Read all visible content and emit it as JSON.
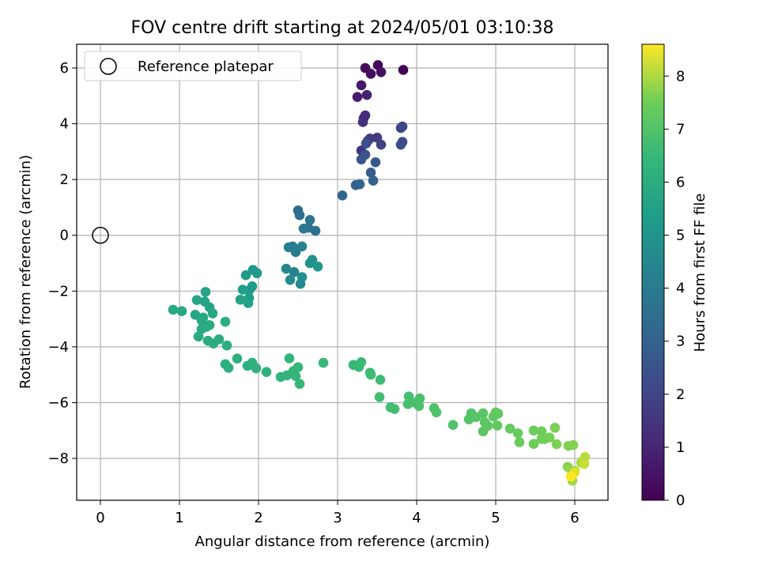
{
  "chart_data": {
    "type": "scatter",
    "title": "FOV centre drift starting at 2024/05/01 03:10:38",
    "xlabel": "Angular distance from reference (arcmin)",
    "ylabel": "Rotation from reference (arcmin)",
    "xlim": [
      -0.3,
      6.42
    ],
    "ylim": [
      -9.5,
      6.85
    ],
    "xticks": [
      0,
      1,
      2,
      3,
      4,
      5,
      6
    ],
    "yticks": [
      -8,
      -6,
      -4,
      -2,
      0,
      2,
      4,
      6
    ],
    "grid": true,
    "legend": {
      "placement": "top-left",
      "entries": [
        "Reference platepar"
      ]
    },
    "reference_point": {
      "x": 0,
      "y": 0
    },
    "colorbar": {
      "label": "Hours from first FF file",
      "colormap": "viridis",
      "range": [
        0,
        8.6
      ],
      "ticks": [
        0,
        1,
        2,
        3,
        4,
        5,
        6,
        7,
        8
      ]
    },
    "point_fields": [
      "x",
      "y",
      "hours"
    ],
    "points": [
      [
        3.83,
        5.93,
        0.05
      ],
      [
        3.51,
        6.1,
        0.15
      ],
      [
        3.35,
        6.0,
        0.25
      ],
      [
        3.42,
        5.79,
        0.35
      ],
      [
        3.55,
        5.85,
        0.45
      ],
      [
        3.3,
        5.38,
        0.6
      ],
      [
        3.25,
        4.96,
        0.75
      ],
      [
        3.37,
        5.03,
        0.9
      ],
      [
        3.33,
        4.2,
        1.05
      ],
      [
        3.35,
        4.3,
        1.2
      ],
      [
        3.32,
        4.06,
        1.35
      ],
      [
        3.3,
        3.04,
        1.5
      ],
      [
        3.41,
        3.47,
        1.6
      ],
      [
        3.5,
        3.5,
        1.7
      ],
      [
        3.38,
        3.38,
        1.8
      ],
      [
        3.55,
        3.25,
        1.9
      ],
      [
        3.8,
        3.85,
        2.0
      ],
      [
        3.82,
        3.9,
        2.1
      ],
      [
        3.82,
        3.35,
        2.2
      ],
      [
        3.8,
        3.25,
        2.3
      ],
      [
        3.36,
        3.29,
        2.4
      ],
      [
        3.35,
        2.89,
        2.5
      ],
      [
        3.3,
        2.72,
        2.6
      ],
      [
        3.48,
        2.62,
        2.7
      ],
      [
        3.42,
        2.25,
        2.8
      ],
      [
        3.45,
        1.96,
        2.9
      ],
      [
        3.23,
        1.8,
        3.0
      ],
      [
        3.28,
        1.83,
        3.1
      ],
      [
        3.06,
        1.43,
        3.2
      ],
      [
        2.5,
        0.89,
        3.35
      ],
      [
        2.52,
        0.72,
        3.45
      ],
      [
        2.63,
        0.27,
        3.55
      ],
      [
        2.72,
        0.16,
        3.65
      ],
      [
        2.65,
        0.55,
        3.75
      ],
      [
        2.57,
        0.24,
        3.85
      ],
      [
        2.47,
        -0.6,
        3.95
      ],
      [
        2.43,
        -0.4,
        4.05
      ],
      [
        2.38,
        -0.43,
        4.15
      ],
      [
        2.55,
        -0.4,
        4.25
      ],
      [
        2.45,
        -1.32,
        4.35
      ],
      [
        2.35,
        -1.2,
        4.45
      ],
      [
        2.53,
        -1.74,
        4.55
      ],
      [
        2.4,
        -1.6,
        4.65
      ],
      [
        2.55,
        -1.5,
        4.75
      ],
      [
        2.68,
        -0.88,
        4.85
      ],
      [
        2.65,
        -1.0,
        4.95
      ],
      [
        2.75,
        -1.12,
        5.05
      ],
      [
        1.93,
        -1.24,
        5.15
      ],
      [
        1.98,
        -1.36,
        5.2
      ],
      [
        1.84,
        -1.43,
        5.25
      ],
      [
        1.88,
        -1.98,
        5.3
      ],
      [
        1.92,
        -1.83,
        5.35
      ],
      [
        1.8,
        -1.95,
        5.4
      ],
      [
        1.88,
        -2.25,
        5.45
      ],
      [
        1.87,
        -2.43,
        5.5
      ],
      [
        1.77,
        -2.31,
        5.55
      ],
      [
        1.33,
        -2.03,
        5.6
      ],
      [
        1.32,
        -2.38,
        5.63
      ],
      [
        1.22,
        -2.32,
        5.66
      ],
      [
        1.38,
        -2.58,
        5.69
      ],
      [
        1.2,
        -2.85,
        5.72
      ],
      [
        1.3,
        -2.95,
        5.75
      ],
      [
        1.42,
        -2.8,
        5.78
      ],
      [
        0.92,
        -2.67,
        5.8
      ],
      [
        1.03,
        -2.72,
        5.82
      ],
      [
        1.28,
        -3.05,
        5.84
      ],
      [
        1.34,
        -3.28,
        5.86
      ],
      [
        1.28,
        -3.36,
        5.88
      ],
      [
        1.38,
        -3.22,
        5.9
      ],
      [
        1.24,
        -3.63,
        5.92
      ],
      [
        1.36,
        -3.78,
        5.94
      ],
      [
        1.43,
        -3.88,
        5.96
      ],
      [
        1.5,
        -3.73,
        5.98
      ],
      [
        1.58,
        -3.1,
        6.0
      ],
      [
        1.6,
        -3.95,
        6.02
      ],
      [
        1.58,
        -4.62,
        6.05
      ],
      [
        1.62,
        -4.75,
        6.08
      ],
      [
        1.73,
        -4.42,
        6.11
      ],
      [
        1.86,
        -4.68,
        6.14
      ],
      [
        1.92,
        -4.57,
        6.17
      ],
      [
        1.97,
        -4.77,
        6.2
      ],
      [
        2.1,
        -4.9,
        6.23
      ],
      [
        2.28,
        -5.08,
        6.26
      ],
      [
        2.36,
        -5.02,
        6.29
      ],
      [
        2.39,
        -4.41,
        6.32
      ],
      [
        2.44,
        -4.87,
        6.35
      ],
      [
        2.47,
        -5.05,
        6.38
      ],
      [
        2.5,
        -4.73,
        6.41
      ],
      [
        2.52,
        -5.33,
        6.44
      ],
      [
        2.82,
        -4.57,
        6.47
      ],
      [
        3.2,
        -4.65,
        6.5
      ],
      [
        3.27,
        -4.72,
        6.53
      ],
      [
        3.3,
        -4.55,
        6.56
      ],
      [
        3.41,
        -4.93,
        6.59
      ],
      [
        3.42,
        -5.0,
        6.62
      ],
      [
        3.54,
        -5.18,
        6.65
      ],
      [
        3.53,
        -5.8,
        6.68
      ],
      [
        3.67,
        -6.17,
        6.71
      ],
      [
        3.72,
        -6.23,
        6.74
      ],
      [
        3.9,
        -5.78,
        6.77
      ],
      [
        3.89,
        -6.05,
        6.8
      ],
      [
        3.98,
        -6.0,
        6.83
      ],
      [
        4.04,
        -5.85,
        6.86
      ],
      [
        4.03,
        -6.12,
        6.89
      ],
      [
        4.22,
        -6.2,
        6.92
      ],
      [
        4.25,
        -6.35,
        6.95
      ],
      [
        4.46,
        -6.8,
        6.98
      ],
      [
        4.66,
        -6.6,
        7.01
      ],
      [
        4.69,
        -6.38,
        7.04
      ],
      [
        4.75,
        -6.52,
        7.07
      ],
      [
        4.84,
        -6.38,
        7.1
      ],
      [
        4.86,
        -6.7,
        7.13
      ],
      [
        4.84,
        -7.03,
        7.16
      ],
      [
        4.9,
        -6.83,
        7.19
      ],
      [
        4.97,
        -6.5,
        7.22
      ],
      [
        5.0,
        -6.35,
        7.25
      ],
      [
        5.03,
        -6.4,
        7.28
      ],
      [
        5.02,
        -6.82,
        7.31
      ],
      [
        5.18,
        -6.93,
        7.34
      ],
      [
        5.28,
        -7.1,
        7.37
      ],
      [
        5.3,
        -7.42,
        7.4
      ],
      [
        5.48,
        -7.0,
        7.43
      ],
      [
        5.48,
        -7.48,
        7.46
      ],
      [
        5.58,
        -7.03,
        7.49
      ],
      [
        5.58,
        -7.3,
        7.52
      ],
      [
        5.62,
        -7.3,
        7.55
      ],
      [
        5.68,
        -7.25,
        7.58
      ],
      [
        5.75,
        -6.9,
        7.61
      ],
      [
        5.77,
        -7.49,
        7.64
      ],
      [
        5.92,
        -7.55,
        7.67
      ],
      [
        5.98,
        -7.52,
        7.7
      ],
      [
        5.91,
        -8.3,
        7.75
      ],
      [
        5.96,
        -8.45,
        7.8
      ],
      [
        6.0,
        -8.45,
        7.85
      ],
      [
        5.97,
        -8.8,
        7.9
      ],
      [
        6.08,
        -8.15,
        7.95
      ],
      [
        6.1,
        -8.1,
        8.0
      ],
      [
        6.13,
        -7.95,
        8.1
      ],
      [
        6.12,
        -8.2,
        8.2
      ],
      [
        6.0,
        -8.5,
        8.4
      ],
      [
        5.95,
        -8.65,
        8.6
      ]
    ]
  }
}
